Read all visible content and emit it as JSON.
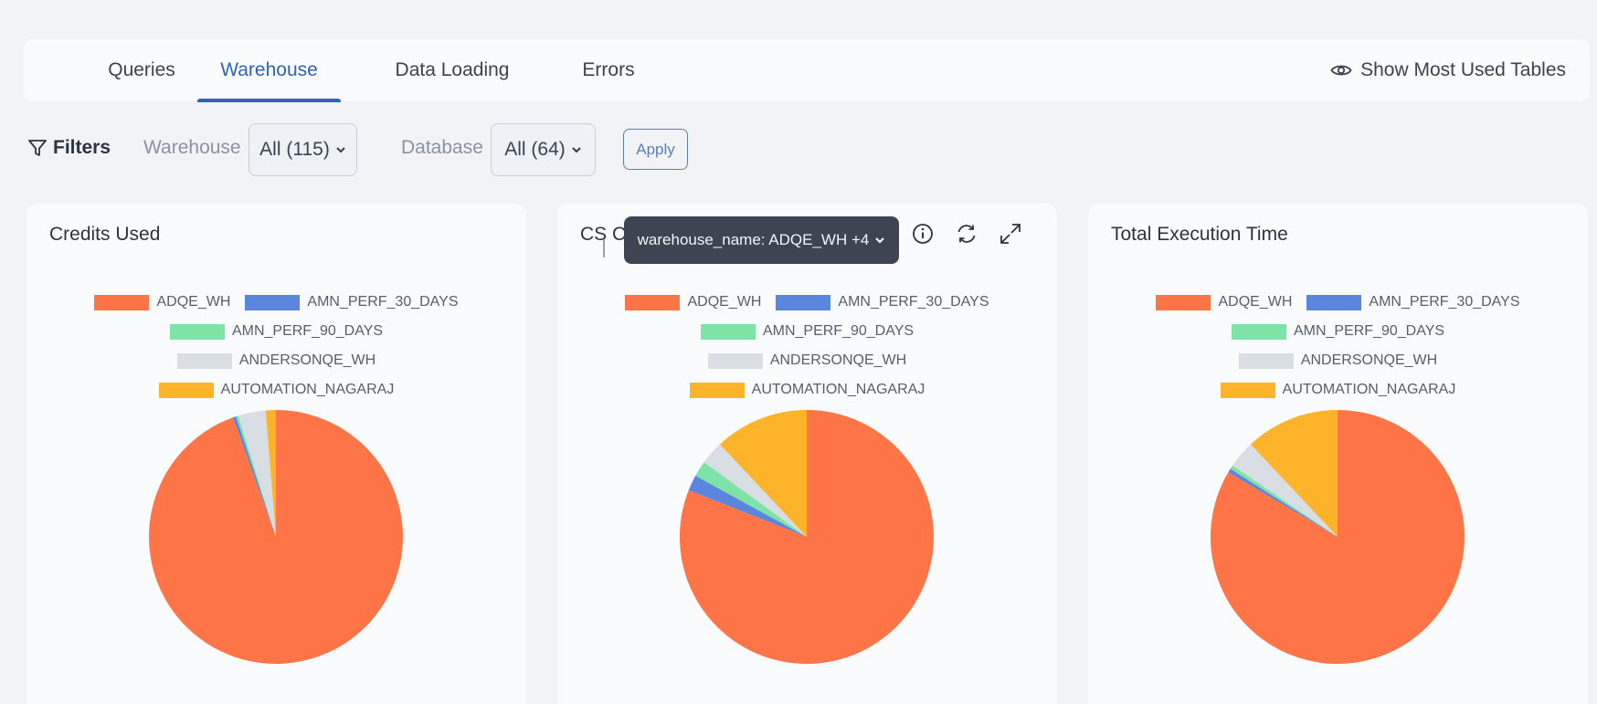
{
  "tabs": [
    {
      "label": "Queries",
      "active": false
    },
    {
      "label": "Warehouse",
      "active": true
    },
    {
      "label": "Data Loading",
      "active": false
    },
    {
      "label": "Errors",
      "active": false
    }
  ],
  "show_most_used": {
    "label": "Show Most Used Tables",
    "icon": "eye-icon"
  },
  "filters": {
    "label": "Filters",
    "warehouse_label": "Warehouse",
    "warehouse_value": "All (115)",
    "database_label": "Database",
    "database_value": "All (64)",
    "apply_label": "Apply"
  },
  "tooltip": {
    "label": "warehouse_name: ADQE_WH +4"
  },
  "colors": {
    "ADQE_WH": "#ff7547",
    "AMN_PERF_30_DAYS": "#5b86dd",
    "AMN_PERF_90_DAYS": "#7ee3a6",
    "ANDERSONQE_WH": "#d9dde4",
    "AUTOMATION_NAGARAJ": "#fdb42a"
  },
  "legend": [
    "ADQE_WH",
    "AMN_PERF_30_DAYS",
    "AMN_PERF_90_DAYS",
    "ANDERSONQE_WH",
    "AUTOMATION_NAGARAJ"
  ],
  "chart_data": [
    {
      "type": "pie",
      "title": "Credits Used",
      "categories": [
        "ADQE_WH",
        "AMN_PERF_30_DAYS",
        "AMN_PERF_90_DAYS",
        "ANDERSONQE_WH",
        "AUTOMATION_NAGARAJ"
      ],
      "values": [
        94.5,
        0.4,
        0.3,
        3.5,
        1.3
      ]
    },
    {
      "type": "pie",
      "title": "CS C",
      "categories": [
        "ADQE_WH",
        "AMN_PERF_30_DAYS",
        "AMN_PERF_90_DAYS",
        "ANDERSONQE_WH",
        "AUTOMATION_NAGARAJ"
      ],
      "values": [
        81.0,
        2.0,
        2.0,
        3.0,
        12.0
      ]
    },
    {
      "type": "pie",
      "title": "Total Execution Time",
      "categories": [
        "ADQE_WH",
        "AMN_PERF_30_DAYS",
        "AMN_PERF_90_DAYS",
        "ANDERSONQE_WH",
        "AUTOMATION_NAGARAJ"
      ],
      "values": [
        83.5,
        0.5,
        0.5,
        3.5,
        12.0
      ]
    }
  ]
}
